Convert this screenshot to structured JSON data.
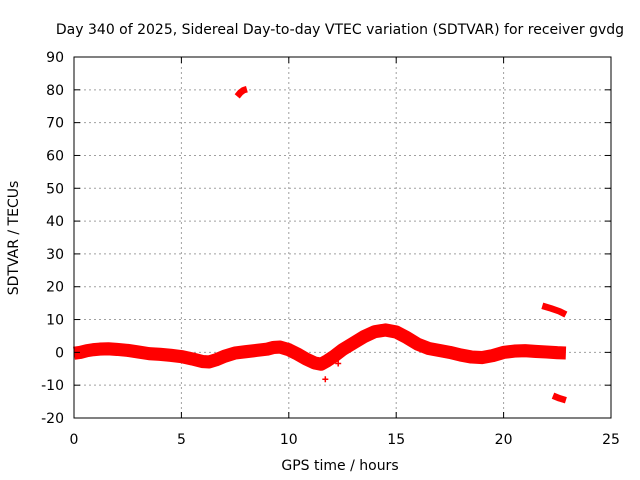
{
  "chart_data": {
    "type": "scatter",
    "title": "Day 340 of 2025, Sidereal Day-to-day VTEC variation (SDTVAR) for receiver gvdg",
    "xlabel": "GPS time / hours",
    "ylabel": "SDTVAR / TECUs",
    "xlim": [
      0,
      25
    ],
    "ylim": [
      -20,
      90
    ],
    "xticks": [
      0,
      5,
      10,
      15,
      20,
      25
    ],
    "yticks": [
      -20,
      -10,
      0,
      10,
      20,
      30,
      40,
      50,
      60,
      70,
      80,
      90
    ],
    "grid": true,
    "legend": "none",
    "color": "#ff0000",
    "series": [
      {
        "name": "main trace",
        "band_width": 4,
        "points": [
          [
            0.0,
            -0.3
          ],
          [
            0.3,
            0.0
          ],
          [
            0.6,
            0.5
          ],
          [
            0.9,
            0.8
          ],
          [
            1.2,
            1.0
          ],
          [
            1.6,
            1.1
          ],
          [
            2.0,
            0.9
          ],
          [
            2.5,
            0.6
          ],
          [
            3.0,
            0.1
          ],
          [
            3.5,
            -0.4
          ],
          [
            4.0,
            -0.6
          ],
          [
            4.5,
            -0.9
          ],
          [
            5.0,
            -1.3
          ],
          [
            5.5,
            -2.0
          ],
          [
            6.0,
            -2.8
          ],
          [
            6.3,
            -2.9
          ],
          [
            6.6,
            -2.3
          ],
          [
            7.0,
            -1.2
          ],
          [
            7.5,
            -0.2
          ],
          [
            8.0,
            0.2
          ],
          [
            8.5,
            0.6
          ],
          [
            9.0,
            1.0
          ],
          [
            9.3,
            1.5
          ],
          [
            9.6,
            1.6
          ],
          [
            10.0,
            0.8
          ],
          [
            10.4,
            -0.5
          ],
          [
            10.8,
            -2.0
          ],
          [
            11.2,
            -3.2
          ],
          [
            11.5,
            -3.6
          ],
          [
            11.8,
            -2.5
          ],
          [
            12.1,
            -1.2
          ],
          [
            12.5,
            0.8
          ],
          [
            13.0,
            2.8
          ],
          [
            13.5,
            4.8
          ],
          [
            14.0,
            6.3
          ],
          [
            14.5,
            6.8
          ],
          [
            15.0,
            6.2
          ],
          [
            15.5,
            4.5
          ],
          [
            16.0,
            2.5
          ],
          [
            16.5,
            1.2
          ],
          [
            17.0,
            0.6
          ],
          [
            17.5,
            0.0
          ],
          [
            18.0,
            -0.8
          ],
          [
            18.5,
            -1.4
          ],
          [
            19.0,
            -1.6
          ],
          [
            19.5,
            -1.0
          ],
          [
            20.0,
            0.0
          ],
          [
            20.5,
            0.4
          ],
          [
            21.0,
            0.5
          ],
          [
            21.5,
            0.3
          ],
          [
            22.0,
            0.1
          ],
          [
            22.5,
            -0.1
          ],
          [
            22.9,
            -0.2
          ]
        ]
      },
      {
        "name": "arc 1",
        "band_width": 2,
        "points": [
          [
            7.6,
            78.0
          ],
          [
            7.75,
            79.2
          ],
          [
            7.9,
            79.9
          ],
          [
            8.05,
            80.2
          ]
        ]
      },
      {
        "name": "arc 2",
        "band_width": 2,
        "points": [
          [
            21.8,
            14.2
          ],
          [
            22.2,
            13.4
          ],
          [
            22.6,
            12.5
          ],
          [
            22.9,
            11.5
          ]
        ]
      },
      {
        "name": "arc 3",
        "band_width": 2,
        "points": [
          [
            22.3,
            -13.2
          ],
          [
            22.6,
            -14.0
          ],
          [
            22.9,
            -14.6
          ]
        ]
      }
    ],
    "outliers": [
      [
        11.7,
        -8.2
      ],
      [
        12.3,
        -3.4
      ],
      [
        9.1,
        1.8
      ],
      [
        0.8,
        1.8
      ]
    ]
  }
}
